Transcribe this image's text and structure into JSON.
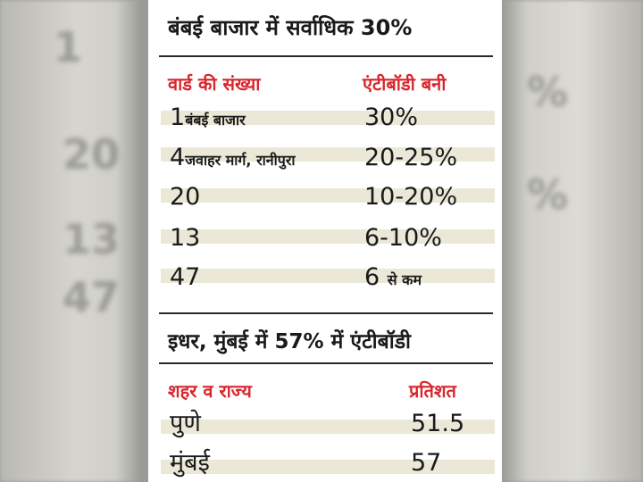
{
  "table1": {
    "title": "बंबई बाजार में सर्वाधिक 30%",
    "headers": [
      "वार्ड की संख्या",
      "एंटीबॉडी बनी"
    ],
    "rows": [
      {
        "num": "1",
        "name": "बंबई बाजार",
        "value": "30%"
      },
      {
        "num": "4",
        "name": "जवाहर मार्ग, रानीपुरा",
        "value": "20-25%"
      },
      {
        "num": "20",
        "name": "",
        "value": "10-20%"
      },
      {
        "num": "13",
        "name": "",
        "value": "6-10%"
      },
      {
        "num": "47",
        "name": "",
        "value": "6",
        "value_suffix": "से कम"
      }
    ]
  },
  "table2": {
    "title": "इधर, मुंबई में 57% में एंटीबॉडी",
    "headers": [
      "शहर व राज्य",
      "प्रतिशत"
    ],
    "rows": [
      {
        "name": "पुणे",
        "value": "51.5"
      },
      {
        "name": "मुंबई",
        "value": "57"
      }
    ]
  },
  "colors": {
    "header_red": "#d8262c",
    "stripe": "#ece8d8"
  }
}
